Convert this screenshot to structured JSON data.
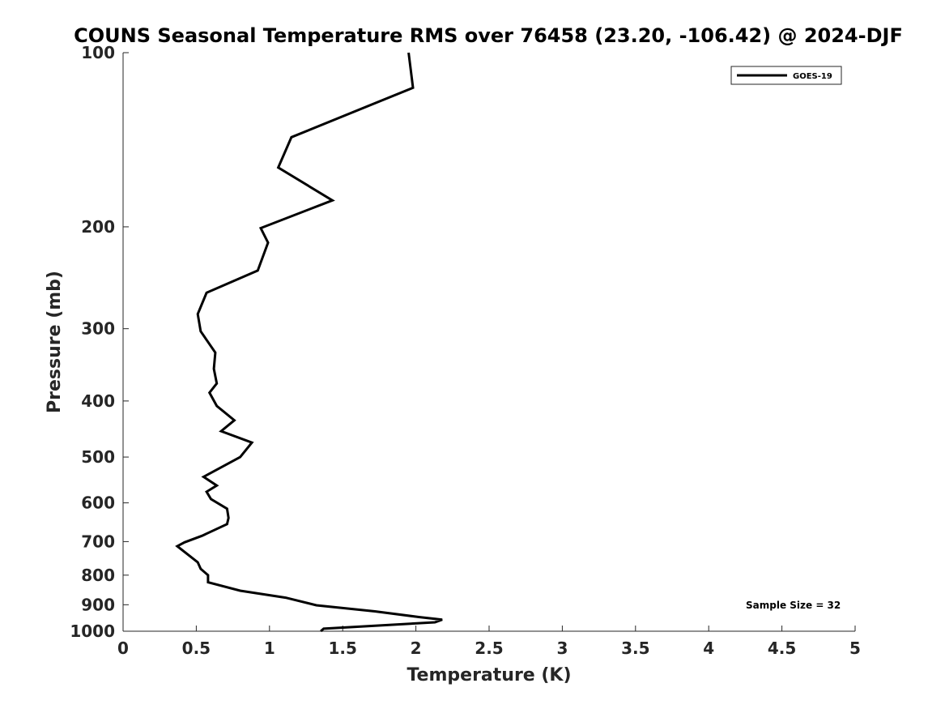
{
  "chart_data": {
    "type": "line",
    "title": "COUNS Seasonal Temperature RMS over 76458 (23.20, -106.42) @ 2024-DJF",
    "xlabel": "Temperature (K)",
    "ylabel": "Pressure (mb)",
    "xlim": [
      0,
      5
    ],
    "ylim": [
      1000,
      100
    ],
    "y_scale": "log",
    "x_ticks": [
      "0",
      "0.5",
      "1",
      "1.5",
      "2",
      "2.5",
      "3",
      "3.5",
      "4",
      "4.5",
      "5"
    ],
    "y_ticks": [
      "100",
      "200",
      "300",
      "400",
      "500",
      "600",
      "700",
      "800",
      "900",
      "1000"
    ],
    "legend_position": "top-right",
    "grid": false,
    "series": [
      {
        "name": "GOES-19",
        "color": "#000000",
        "points": [
          [
            1.95,
            100
          ],
          [
            1.98,
            115
          ],
          [
            1.15,
            140
          ],
          [
            1.06,
            158
          ],
          [
            1.43,
            180
          ],
          [
            0.94,
            201
          ],
          [
            0.99,
            213
          ],
          [
            0.92,
            238
          ],
          [
            0.57,
            260
          ],
          [
            0.51,
            283
          ],
          [
            0.53,
            303
          ],
          [
            0.63,
            330
          ],
          [
            0.62,
            352
          ],
          [
            0.64,
            373
          ],
          [
            0.59,
            387
          ],
          [
            0.64,
            408
          ],
          [
            0.76,
            432
          ],
          [
            0.67,
            451
          ],
          [
            0.88,
            472
          ],
          [
            0.8,
            500
          ],
          [
            0.55,
            541
          ],
          [
            0.64,
            560
          ],
          [
            0.57,
            574
          ],
          [
            0.6,
            591
          ],
          [
            0.71,
            614
          ],
          [
            0.72,
            637
          ],
          [
            0.71,
            653
          ],
          [
            0.54,
            684
          ],
          [
            0.42,
            702
          ],
          [
            0.37,
            713
          ],
          [
            0.51,
            760
          ],
          [
            0.53,
            780
          ],
          [
            0.58,
            800
          ],
          [
            0.58,
            823
          ],
          [
            0.8,
            851
          ],
          [
            1.11,
            875
          ],
          [
            1.32,
            902
          ],
          [
            1.72,
            924
          ],
          [
            2.02,
            945
          ],
          [
            2.18,
            955
          ],
          [
            2.13,
            965
          ],
          [
            1.37,
            990
          ],
          [
            1.35,
            1000
          ]
        ]
      }
    ],
    "annotation": "Sample Size = 32"
  }
}
